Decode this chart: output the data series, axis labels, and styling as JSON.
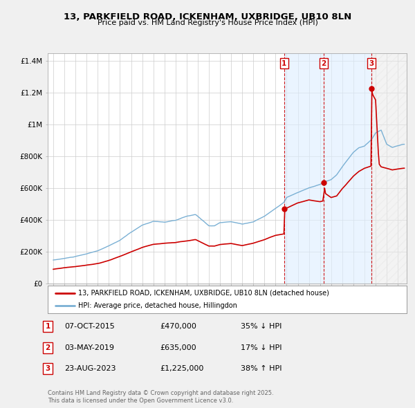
{
  "title": "13, PARKFIELD ROAD, ICKENHAM, UXBRIDGE, UB10 8LN",
  "subtitle": "Price paid vs. HM Land Registry's House Price Index (HPI)",
  "ylabel_ticks": [
    "£0",
    "£200K",
    "£400K",
    "£600K",
    "£800K",
    "£1M",
    "£1.2M",
    "£1.4M"
  ],
  "ytick_values": [
    0,
    200000,
    400000,
    600000,
    800000,
    1000000,
    1200000,
    1400000
  ],
  "ylim": [
    0,
    1450000
  ],
  "transactions": [
    {
      "label": "1",
      "date": "07-OCT-2015",
      "price": 470000,
      "price_str": "£470,000",
      "pct": "35% ↓ HPI",
      "x_year": 2015.77
    },
    {
      "label": "2",
      "date": "03-MAY-2019",
      "price": 635000,
      "price_str": "£635,000",
      "pct": "17% ↓ HPI",
      "x_year": 2019.34
    },
    {
      "label": "3",
      "date": "23-AUG-2023",
      "price": 1225000,
      "price_str": "£1,225,000",
      "pct": "38% ↑ HPI",
      "x_year": 2023.64
    }
  ],
  "legend_line1": "13, PARKFIELD ROAD, ICKENHAM, UXBRIDGE, UB10 8LN (detached house)",
  "legend_line2": "HPI: Average price, detached house, Hillingdon",
  "footer1": "Contains HM Land Registry data © Crown copyright and database right 2025.",
  "footer2": "This data is licensed under the Open Government Licence v3.0.",
  "line_color_red": "#cc0000",
  "line_color_blue": "#7ab0d4",
  "shade_color": "#ddeeff",
  "background_color": "#f0f0f0",
  "plot_bg_color": "#ffffff",
  "grid_color": "#cccccc",
  "xlim_start": 1994.5,
  "xlim_end": 2026.8
}
